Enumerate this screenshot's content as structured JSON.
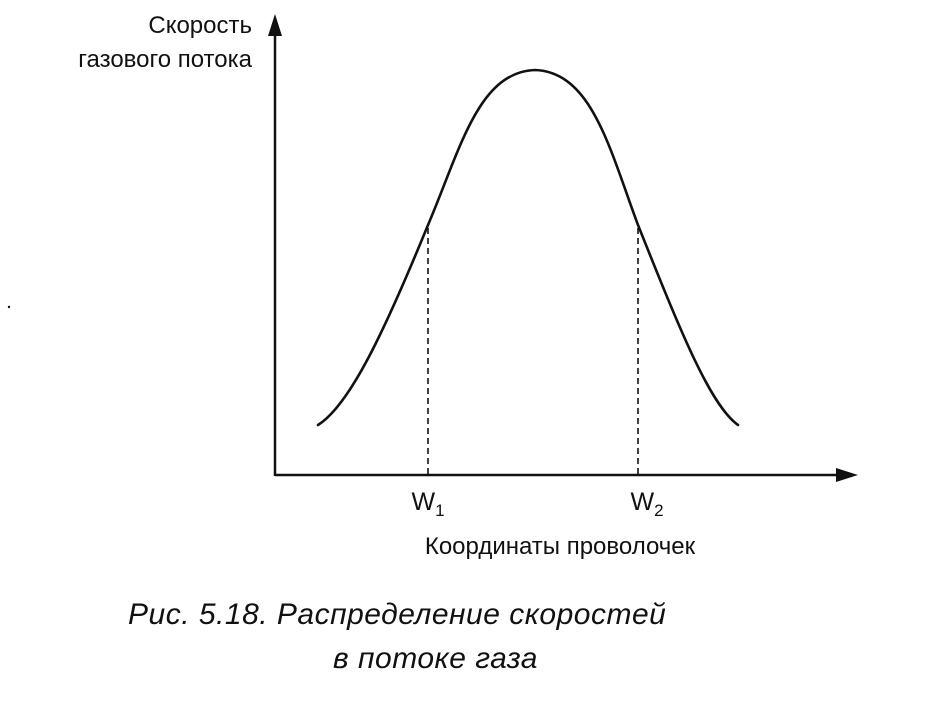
{
  "figure": {
    "y_axis_title_lines": [
      "Скорость",
      "газового потока"
    ],
    "x_axis_title": "Координаты проволочек",
    "markers": [
      {
        "letter": "W",
        "index": "1"
      },
      {
        "letter": "W",
        "index": "2"
      }
    ],
    "caption_lines": [
      "Рис. 5.18. Распределение скоростей",
      "в потоке газа"
    ],
    "curve_shape": "bell",
    "marker_style": "dashed vertical lines",
    "colors": {
      "ink": "#111111",
      "background": "#ffffff"
    }
  }
}
